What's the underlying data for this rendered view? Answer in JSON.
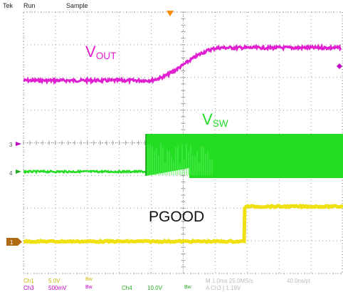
{
  "status_bar": {
    "brand": "Tek",
    "run_state": "Run",
    "acq_mode": "Sample"
  },
  "traces": {
    "vout": {
      "main": "V",
      "sub": "OUT",
      "color": "#e020d0",
      "marker_color": "#c000c0"
    },
    "vsw": {
      "main": "V",
      "sub": "SW",
      "color": "#22dd22"
    },
    "pgood": {
      "main": "PGOOD",
      "color": "#f0e010"
    }
  },
  "channel_markers": {
    "ch3": "3",
    "ch4": "4",
    "ch1": "1"
  },
  "readout": {
    "ch1_name": "Ch1",
    "ch1_scale": "5.0V",
    "ch1_bw": "Bw",
    "ch3_name": "Ch3",
    "ch3_scale": "500mV",
    "ch3_bw": "Bw",
    "ch4_name": "Ch4",
    "ch4_scale": "10.0V",
    "ch4_bw": "Bw",
    "timebase": "M 1.0ms 25.0MS/s",
    "sample_interval": "40.0ns/pt",
    "trigger": "A  Ch3  ∫  1.19V"
  },
  "colors": {
    "grid": "#9a9a9a",
    "trigger_marker": "#ff8c00",
    "ch1_label": "#c8b400",
    "ch3_label": "#c800c8",
    "ch4_label": "#22aa22",
    "faint_text": "#bbbbbb"
  }
}
